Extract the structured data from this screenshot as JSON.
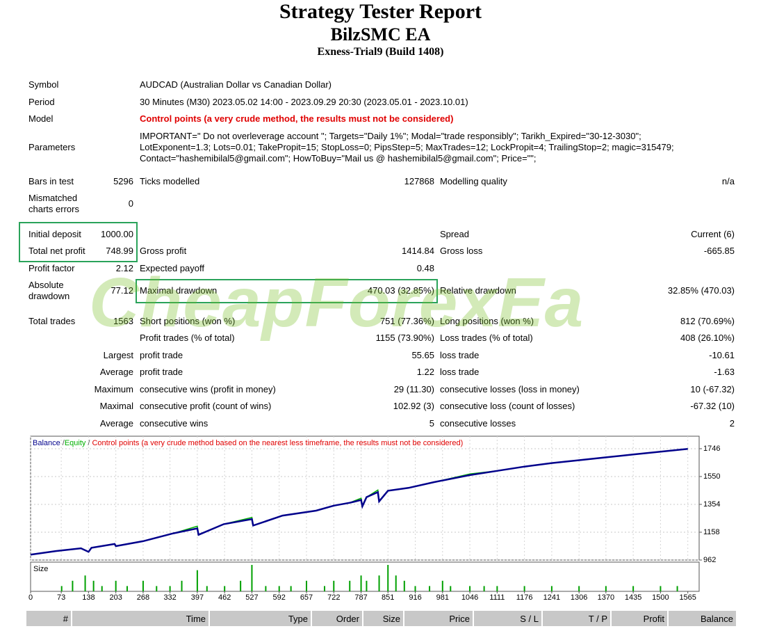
{
  "header": {
    "title": "Strategy Tester Report",
    "subtitle": "BilzSMC EA",
    "server": "Exness-Trial9 (Build 1408)"
  },
  "watermark": "CheapForexEa",
  "report": {
    "rows": [
      [
        "Symbol",
        "AUDCAD (Australian Dollar vs Canadian Dollar)"
      ],
      [
        "Period",
        "30 Minutes (M30) 2023.05.02 14:00 - 2023.09.29 20:30 (2023.05.01 - 2023.10.01)"
      ],
      [
        "Model",
        "Control points (a very crude method, the results must not be considered)"
      ],
      [
        "Parameters",
        [
          "IMPORTANT=\" Do not overleverage account \"; Targets=\"Daily 1%\"; Modal=\"trade responsibly\"; Tarikh_Expired=\"30-12-3030\";",
          "LotExponent=1.3; Lots=0.01; TakePropit=15; StopLoss=0; PipsStep=5; MaxTrades=12; LockPropit=4; TrailingStop=2; magic=315479;",
          "Contact=\"hashemibilal5@gmail.com\"; HowToBuy=\"Mail us @ hashemibilal5@gmail.com\"; Price=\"\";"
        ]
      ],
      [
        "Bars in test",
        "5296",
        "Ticks modelled",
        "127868",
        "Modelling quality",
        "n/a"
      ],
      [
        "Mismatched charts errors",
        "0",
        null,
        null,
        null,
        null
      ],
      [
        "Initial deposit",
        "1000.00",
        null,
        null,
        "Spread",
        "Current (6)"
      ],
      [
        "Total net profit",
        "748.99",
        "Gross profit",
        "1414.84",
        "Gross loss",
        "-665.85"
      ],
      [
        "Profit factor",
        "2.12",
        "Expected payoff",
        "0.48",
        null,
        null
      ],
      [
        "Absolute drawdown",
        "77.12",
        "Maximal drawdown",
        "470.03 (32.85%)",
        "Relative drawdown",
        "32.85% (470.03)"
      ],
      [
        "Total trades",
        "1563",
        "Short positions (won %)",
        "751 (77.36%)",
        "Long positions (won %)",
        "812 (70.69%)"
      ],
      [
        null,
        null,
        "Profit trades (% of total)",
        "1155 (73.90%)",
        "Loss trades (% of total)",
        "408 (26.10%)"
      ],
      [
        null,
        "Largest",
        "profit trade",
        "55.65",
        "loss trade",
        "-10.61"
      ],
      [
        null,
        "Average",
        "profit trade",
        "1.22",
        "loss trade",
        "-1.63"
      ],
      [
        null,
        "Maximum",
        "consecutive wins (profit in money)",
        "29 (11.30)",
        "consecutive losses (loss in money)",
        "10 (-67.32)"
      ],
      [
        null,
        "Maximal",
        "consecutive profit (count of wins)",
        "102.92 (3)",
        "consecutive loss (count of losses)",
        "-67.32 (10)"
      ],
      [
        null,
        "Average",
        "consecutive wins",
        "5",
        "consecutive losses",
        "2"
      ]
    ]
  },
  "chart_data": [
    {
      "type": "line",
      "legend_separator": "/",
      "annotation": "Control points (a very crude method based on the nearest less timeframe, the results must not be considered)",
      "x": [
        0,
        60,
        120,
        138,
        145,
        200,
        203,
        268,
        340,
        397,
        400,
        460,
        527,
        530,
        600,
        680,
        722,
        760,
        787,
        790,
        800,
        827,
        830,
        851,
        900,
        960,
        1046,
        1111,
        1176,
        1241,
        1306,
        1370,
        1435,
        1500,
        1565
      ],
      "series": [
        {
          "name": "Balance",
          "color": "#00008b",
          "values": [
            1000,
            1025,
            1045,
            1020,
            1048,
            1075,
            1060,
            1095,
            1150,
            1185,
            1140,
            1215,
            1250,
            1205,
            1275,
            1310,
            1345,
            1365,
            1385,
            1340,
            1405,
            1440,
            1375,
            1450,
            1470,
            1510,
            1560,
            1590,
            1620,
            1645,
            1665,
            1685,
            1705,
            1725,
            1745
          ]
        },
        {
          "name": "Equity",
          "color": "#00b000",
          "values": [
            1000,
            1025,
            1045,
            1020,
            1048,
            1075,
            1060,
            1095,
            1150,
            1200,
            1140,
            1215,
            1262,
            1205,
            1275,
            1310,
            1345,
            1365,
            1398,
            1340,
            1405,
            1455,
            1375,
            1450,
            1470,
            1510,
            1568,
            1590,
            1620,
            1645,
            1665,
            1685,
            1705,
            1725,
            1745
          ]
        }
      ],
      "xlim": [
        0,
        1592
      ],
      "ylim": [
        962,
        1834
      ],
      "xticks": [
        0,
        73,
        138,
        203,
        268,
        332,
        397,
        462,
        527,
        592,
        657,
        722,
        787,
        851,
        916,
        981,
        1046,
        1111,
        1176,
        1241,
        1306,
        1370,
        1435,
        1500,
        1565
      ],
      "yticks": [
        962,
        1158,
        1354,
        1550,
        1746
      ],
      "grid": true
    },
    {
      "type": "bar",
      "title": "Size",
      "color": "#00a000",
      "xlim": [
        0,
        1592
      ],
      "ylim": [
        0,
        0.05
      ],
      "x": [
        74,
        100,
        130,
        150,
        170,
        203,
        230,
        268,
        300,
        332,
        360,
        397,
        420,
        462,
        500,
        527,
        560,
        592,
        620,
        657,
        700,
        722,
        760,
        787,
        800,
        830,
        851,
        870,
        890,
        916,
        950,
        981,
        1000,
        1046,
        1080,
        1111,
        1176,
        1241,
        1306,
        1370,
        1435,
        1500,
        1540
      ],
      "values": [
        0.01,
        0.02,
        0.03,
        0.02,
        0.01,
        0.02,
        0.01,
        0.02,
        0.01,
        0.01,
        0.02,
        0.04,
        0.01,
        0.01,
        0.02,
        0.05,
        0.01,
        0.01,
        0.01,
        0.02,
        0.01,
        0.02,
        0.02,
        0.03,
        0.02,
        0.03,
        0.05,
        0.03,
        0.02,
        0.01,
        0.01,
        0.02,
        0.01,
        0.01,
        0.01,
        0.01,
        0.01,
        0.01,
        0.01,
        0.01,
        0.01,
        0.01,
        0.01
      ]
    }
  ],
  "trade_table": {
    "columns": [
      "#",
      "Time",
      "Type",
      "Order",
      "Size",
      "Price",
      "S / L",
      "T / P",
      "Profit",
      "Balance"
    ]
  }
}
